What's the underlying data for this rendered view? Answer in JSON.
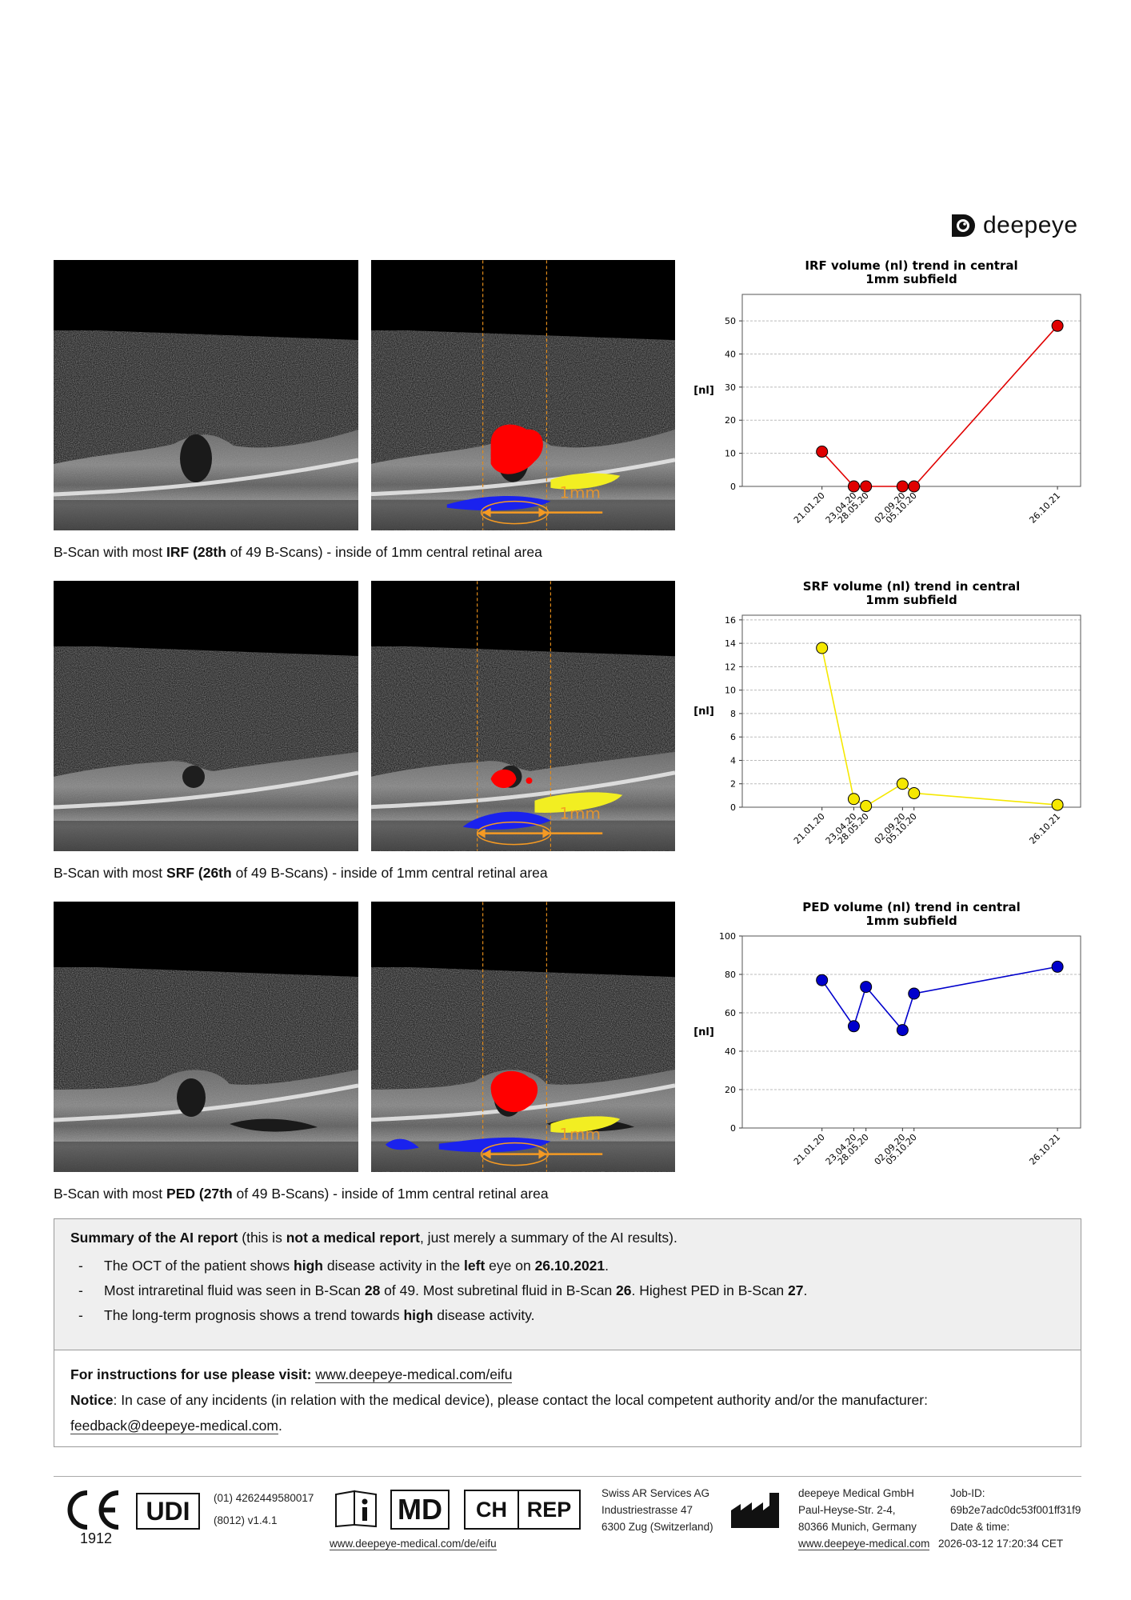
{
  "brand": {
    "name": "deepeye"
  },
  "scans": [
    {
      "caption_pre": "B-Scan with most ",
      "caption_bold": "IRF (28th",
      "caption_post": " of 49 B-Scans) - inside of 1mm central retinal area",
      "mm_label": "1mm"
    },
    {
      "caption_pre": "B-Scan with most ",
      "caption_bold": "SRF (26th",
      "caption_post": " of 49 B-Scans) - inside of 1mm central retinal area",
      "mm_label": "1mm"
    },
    {
      "caption_pre": "B-Scan with most ",
      "caption_bold": "PED (27th",
      "caption_post": " of 49 B-Scans) - inside of 1mm central retinal area",
      "mm_label": "1mm"
    }
  ],
  "chart_data": [
    {
      "type": "line",
      "title": "IRF volume (nl) trend in central\n1mm subfield",
      "ylabel": "[nl]",
      "xlabel": "",
      "x": [
        "21.01.20",
        "23.04.20",
        "28.05.20",
        "02.09.20",
        "05.10.20",
        "26.10.21"
      ],
      "values": [
        10.5,
        0,
        0,
        0,
        0,
        48.5
      ],
      "ylim": [
        0,
        58
      ],
      "yticks": [
        0,
        10,
        20,
        30,
        40,
        50
      ],
      "color": "#e00000",
      "grid": "horizontal"
    },
    {
      "type": "line",
      "title": "SRF volume (nl) trend in central\n1mm subfield",
      "ylabel": "[nl]",
      "xlabel": "",
      "x": [
        "21.01.20",
        "23.04.20",
        "28.05.20",
        "02.09.20",
        "05.10.20",
        "26.10.21"
      ],
      "values": [
        13.6,
        0.7,
        0.1,
        2.0,
        1.2,
        0.2
      ],
      "ylim": [
        0,
        16.4
      ],
      "yticks": [
        0,
        2,
        4,
        6,
        8,
        10,
        12,
        14,
        16
      ],
      "color": "#f5e800",
      "grid": "horizontal"
    },
    {
      "type": "line",
      "title": "PED volume (nl) trend in central\n1mm subfield",
      "ylabel": "[nl]",
      "xlabel": "",
      "x": [
        "21.01.20",
        "23.04.20",
        "28.05.20",
        "02.09.20",
        "05.10.20",
        "26.10.21"
      ],
      "values": [
        77,
        53,
        73.5,
        51,
        70,
        84
      ],
      "ylim": [
        0,
        100
      ],
      "yticks": [
        0,
        20,
        40,
        60,
        80,
        100
      ],
      "color": "#0000cc",
      "grid": "horizontal"
    }
  ],
  "summary": {
    "title_bold": "Summary of the AI report",
    "title_mid": " (this is ",
    "title_bold2": "not a medical report",
    "title_end": ", just merely a summary of the AI results).",
    "items": [
      {
        "t1": "The OCT of the patient shows ",
        "b1": "high",
        "t2": " disease activity in the ",
        "b2": "left",
        "t3": " eye on ",
        "b3": "26.10.2021",
        "t4": "."
      },
      {
        "t1": "Most intraretinal fluid was seen in B-Scan ",
        "b1": "28",
        "t2": " of 49. Most subretinal fluid in B-Scan ",
        "b2": "26",
        "t3": ". Highest PED in B-Scan ",
        "b3": "27",
        "t4": "."
      },
      {
        "t1": "The long-term prognosis shows a trend towards ",
        "b1": "high",
        "t2": " disease activity.",
        "b2": "",
        "t3": "",
        "b3": "",
        "t4": ""
      }
    ],
    "dash": "-",
    "ifu_label": "For instructions for use please visit:",
    "ifu_link": "www.deepeye-medical.com/eifu",
    "notice_label": "Notice",
    "notice_text": ": In case of any incidents (in relation with the medical device), please contact the local competent authority and/or the manufacturer:",
    "notice_email": "feedback@deepeye-medical.com",
    "notice_end": "."
  },
  "footer": {
    "ce_mark": "CE",
    "ce_number": "1912",
    "udi_label": "UDI",
    "udi_line1": "(01) 4262449580017",
    "udi_line2": "(8012) v1.4.1",
    "md_label": "MD",
    "ch_label": "CH",
    "rep_label": "REP",
    "eifu_link": "www.deepeye-medical.com/de/eifu",
    "rep_name": "Swiss AR Services AG",
    "rep_street": "Industriestrasse 47",
    "rep_city": "6300 Zug (Switzerland)",
    "mfr_name": "deepeye Medical GmbH",
    "mfr_street": "Paul-Heyse-Str. 2-4,",
    "mfr_city": "80366 Munich, Germany",
    "mfr_web": "www.deepeye-medical.com",
    "job_label": "Job-ID:",
    "job_id": "69b2e7adc0dc53f001ff31f9",
    "date_label": "Date & time:",
    "date_value": "2026-03-12 17:20:34 CET"
  }
}
